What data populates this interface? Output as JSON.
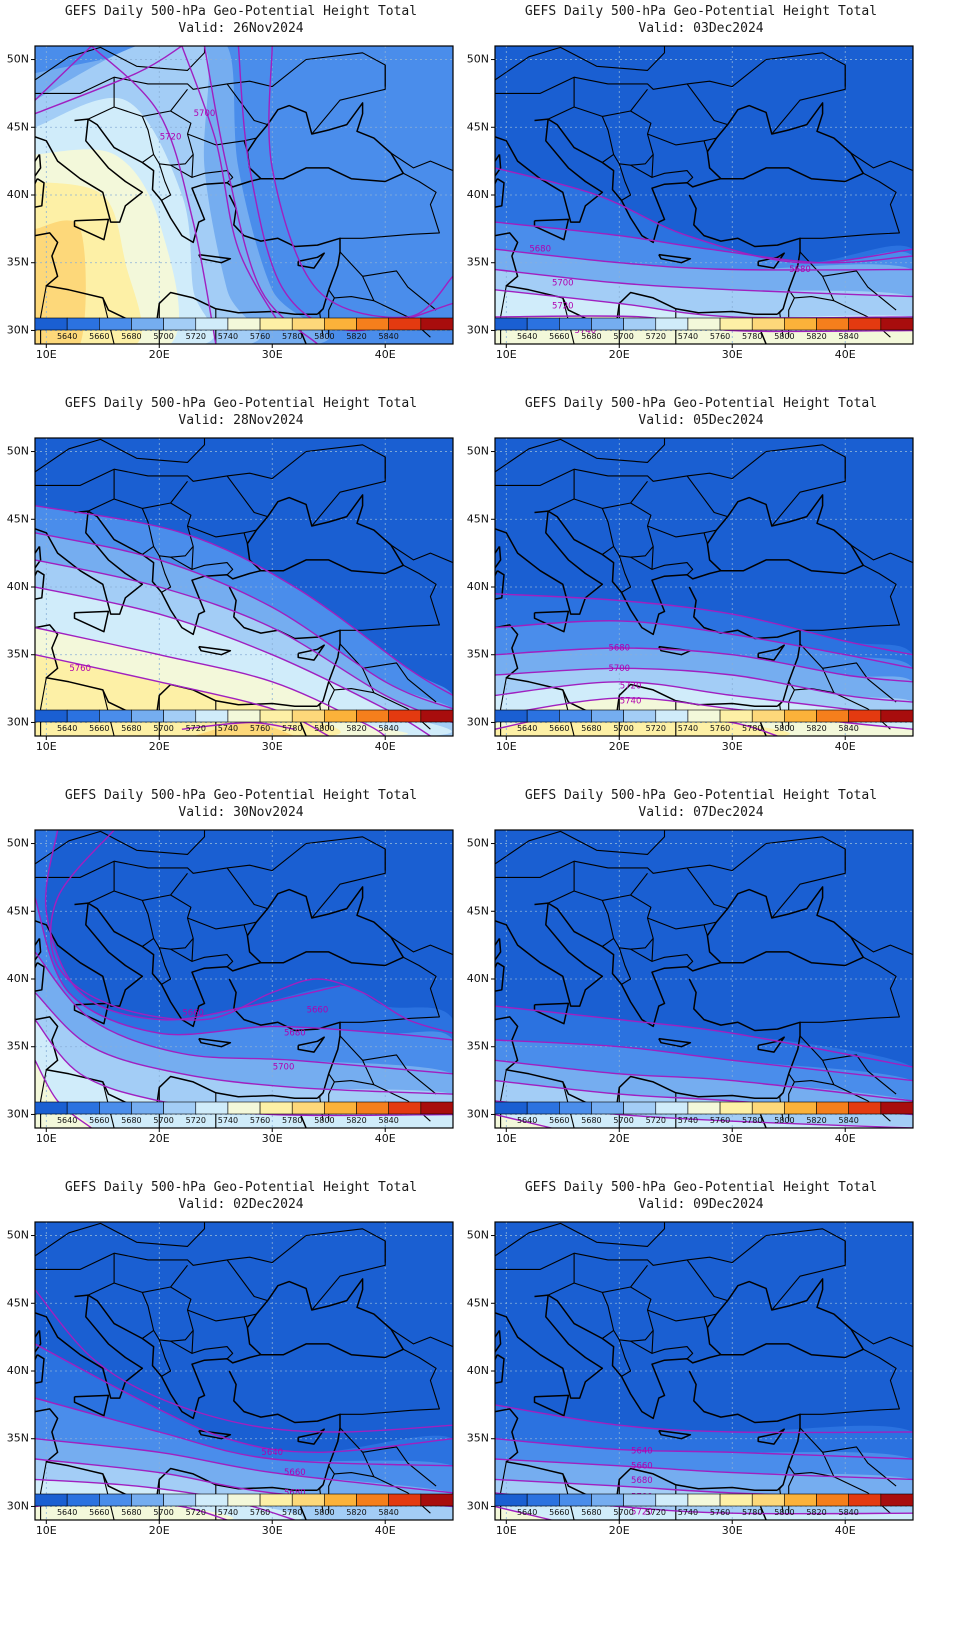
{
  "panels": [
    {
      "title": "GEFS Daily 500-hPa Geo-Potential Height Total",
      "valid": "Valid: 26Nov2024",
      "contour_labels": [
        "5700",
        "5720"
      ]
    },
    {
      "title": "GEFS Daily 500-hPa Geo-Potential Height Total",
      "valid": "Valid: 03Dec2024",
      "contour_labels": [
        "5680",
        "5700",
        "5720",
        "5740",
        "5680"
      ]
    },
    {
      "title": "GEFS Daily 500-hPa Geo-Potential Height Total",
      "valid": "Valid: 28Nov2024",
      "contour_labels": [
        "5760"
      ]
    },
    {
      "title": "GEFS Daily 500-hPa Geo-Potential Height Total",
      "valid": "Valid: 05Dec2024",
      "contour_labels": [
        "5680",
        "5700",
        "5720",
        "5740",
        "5760"
      ]
    },
    {
      "title": "GEFS Daily 500-hPa Geo-Potential Height Total",
      "valid": "Valid: 30Nov2024",
      "contour_labels": [
        "5660",
        "5660",
        "5680",
        "5700"
      ]
    },
    {
      "title": "GEFS Daily 500-hPa Geo-Potential Height Total",
      "valid": "Valid: 07Dec2024",
      "contour_labels": []
    },
    {
      "title": "GEFS Daily 500-hPa Geo-Potential Height Total",
      "valid": "Valid: 02Dec2024",
      "contour_labels": [
        "5640",
        "5660",
        "5680"
      ]
    },
    {
      "title": "GEFS Daily 500-hPa Geo-Potential Height Total",
      "valid": "Valid: 09Dec2024",
      "contour_labels": [
        "5640",
        "5660",
        "5680",
        "5700",
        "5720"
      ]
    }
  ],
  "lat_labels": [
    "50N",
    "45N",
    "40N",
    "35N",
    "30N"
  ],
  "lon_labels": [
    "10E",
    "20E",
    "30E",
    "40E"
  ],
  "colorbar": {
    "labels": [
      "5640",
      "5660",
      "5680",
      "5700",
      "5720",
      "5740",
      "5760",
      "5780",
      "5800",
      "5820",
      "5840"
    ],
    "colors": [
      "#1a5fd2",
      "#2b72e0",
      "#4a8deb",
      "#75adf0",
      "#a3cdf6",
      "#d0ecfa",
      "#f3f8da",
      "#fdf0a6",
      "#fdd87a",
      "#fbb23a",
      "#f57f1c",
      "#e33a10",
      "#a80d0d"
    ]
  },
  "legend_colors": {
    "contour": "#a020c0",
    "coast": "#000000",
    "base_fill": "#2466d6"
  }
}
